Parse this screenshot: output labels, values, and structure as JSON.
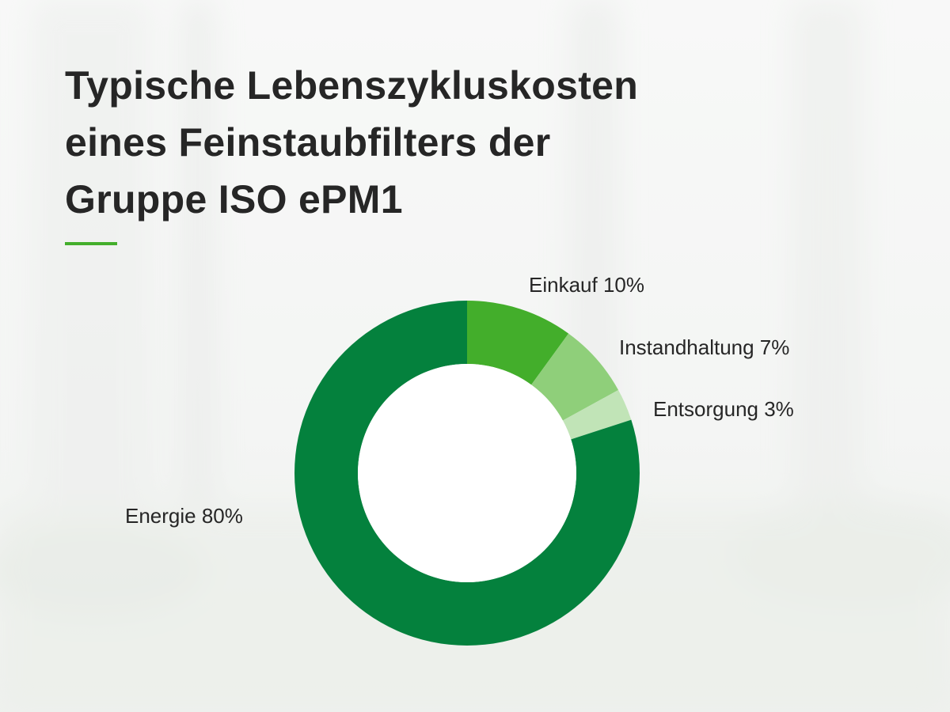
{
  "title_lines": [
    "Typische Lebenszykluskosten",
    "eines Feinstaubfilters der",
    "Gruppe ISO ePM1"
  ],
  "colors": {
    "accent": "#43ae2b",
    "title": "#262626"
  },
  "chart_data": {
    "type": "pie",
    "donut": true,
    "title": "Typische Lebenszykluskosten eines Feinstaubfilters der Gruppe ISO ePM1",
    "unit": "%",
    "slices": [
      {
        "label": "Einkauf",
        "value": 10,
        "display": "Einkauf 10%",
        "color": "#43ae2b"
      },
      {
        "label": "Instandhaltung",
        "value": 7,
        "display": "Instandhaltung 7%",
        "color": "#8fcf7a"
      },
      {
        "label": "Entsorgung",
        "value": 3,
        "display": "Entsorgung 3%",
        "color": "#c1e4b7"
      },
      {
        "label": "Energie",
        "value": 80,
        "display": "Energie 80%",
        "color": "#04813d"
      }
    ],
    "legend": "none"
  }
}
